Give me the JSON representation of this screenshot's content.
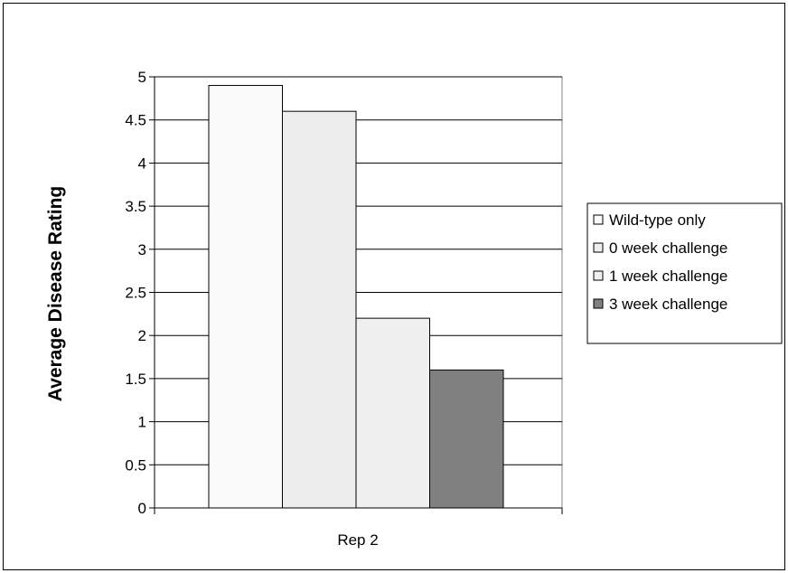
{
  "chart_data": {
    "type": "bar",
    "categories": [
      "Rep 2"
    ],
    "series": [
      {
        "name": "Wild-type only",
        "values": [
          4.9
        ],
        "color": "#fafafa"
      },
      {
        "name": "0 week challenge",
        "values": [
          4.6
        ],
        "color": "#ededed"
      },
      {
        "name": "1 week challenge",
        "values": [
          2.2
        ],
        "color": "#f0f0f0"
      },
      {
        "name": "3 week challenge",
        "values": [
          1.6
        ],
        "color": "#808080"
      }
    ],
    "title": "",
    "xlabel": "",
    "ylabel": "Average Disease Rating",
    "ylim": [
      0,
      5
    ],
    "yticks": [
      0,
      0.5,
      1,
      1.5,
      2,
      2.5,
      3,
      3.5,
      4,
      4.5,
      5
    ],
    "ytick_labels": [
      "0",
      "0.5",
      "1",
      "1.5",
      "2",
      "2.5",
      "3",
      "3.5",
      "4",
      "4.5",
      "5"
    ],
    "grid": true,
    "legend": "right"
  }
}
